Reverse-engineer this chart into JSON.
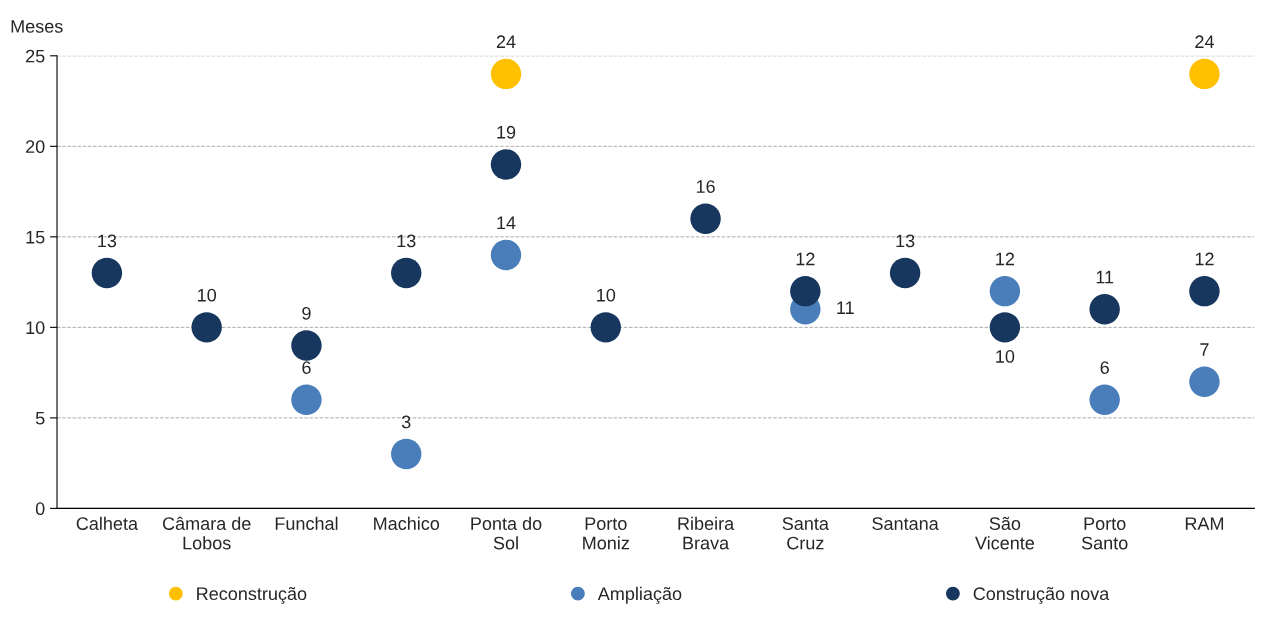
{
  "chart_data": {
    "type": "scatter",
    "ylabel": "Meses",
    "categories": [
      "Calheta",
      "Câmara de\nLobos",
      "Funchal",
      "Machico",
      "Ponta do\nSol",
      "Porto\nMoniz",
      "Ribeira\nBrava",
      "Santa\nCruz",
      "Santana",
      "São\nVicente",
      "Porto\nSanto",
      "RAM"
    ],
    "series": [
      {
        "name": "Reconstrução",
        "color": "#ffc000",
        "values": [
          null,
          null,
          null,
          null,
          24,
          null,
          null,
          null,
          null,
          null,
          null,
          24
        ]
      },
      {
        "name": "Ampliação",
        "color": "#4a7ebb",
        "values": [
          null,
          null,
          6,
          3,
          14,
          null,
          null,
          11,
          null,
          12,
          6,
          7
        ]
      },
      {
        "name": "Construção nova",
        "color": "#17375e",
        "values": [
          13,
          10,
          9,
          13,
          19,
          10,
          16,
          12,
          13,
          10,
          11,
          12
        ]
      }
    ],
    "ylim": [
      0,
      25
    ],
    "yticks": [
      0,
      5,
      10,
      15,
      20,
      25
    ],
    "grid": "y",
    "legend": "bottom",
    "marker": "circle",
    "data_labels": true
  }
}
